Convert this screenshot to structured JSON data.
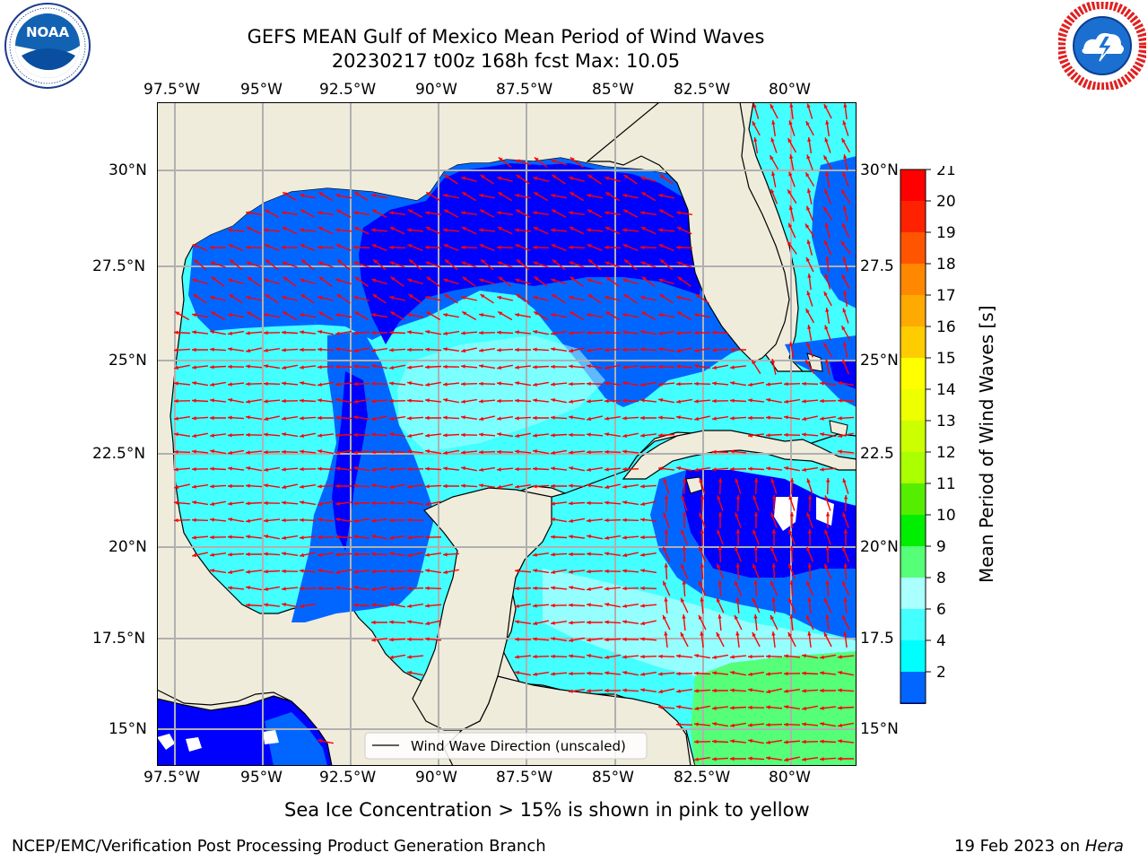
{
  "header": {
    "title_line1": "GEFS MEAN Gulf of Mexico Mean Period of Wind Waves",
    "title_line2": "20230217 t00z 168h fcst   Max: 10.05"
  },
  "logos": {
    "left": {
      "name": "noaa-logo",
      "text": "NOAA",
      "ring_text": "NATIONAL OCEANIC AND ATMOSPHERIC ADMINISTRATION · U.S. DEPARTMENT OF COMMERCE"
    },
    "right": {
      "name": "nws-logo",
      "ring_text": "NATIONAL WEATHER SERVICE"
    }
  },
  "map": {
    "lon_labels": [
      "97.5°W",
      "95°W",
      "92.5°W",
      "90°W",
      "87.5°W",
      "85°W",
      "82.5°W",
      "80°W"
    ],
    "lat_labels_left": [
      "30°N",
      "27.5°N",
      "25°N",
      "22.5°N",
      "20°N",
      "17.5°N",
      "15°N"
    ],
    "lat_labels_right": [
      "30°N",
      "27.5",
      "25°N",
      "22.5",
      "20°N",
      "17.5",
      "15°N"
    ],
    "legend_label": "Wind Wave Direction (unscaled)",
    "colors": {
      "land": "#efecdb",
      "band_2_4": "#0066ff",
      "band_4_6": "#00ffff",
      "band_6_8": "#44ffff",
      "band_8_9": "#aaffff",
      "band_9_10": "#55ff77",
      "below_2": "#0000ff",
      "arrow": "#ff0000",
      "grid": "#b0b0b0"
    }
  },
  "colorbar": {
    "label": "Mean Period of Wind Waves [s]",
    "ticks": [
      "21",
      "20",
      "19",
      "18",
      "17",
      "16",
      "15",
      "14",
      "13",
      "12",
      "11",
      "10",
      "9",
      "8",
      "6",
      "4",
      "2"
    ],
    "colors": [
      "#ff0000",
      "#ff2200",
      "#ff5500",
      "#ff8800",
      "#ffaa00",
      "#ffcc00",
      "#ffff00",
      "#eeff00",
      "#ccff00",
      "#aaff00",
      "#55ee00",
      "#00ee00",
      "#55ff77",
      "#aaffff",
      "#44ffff",
      "#00ffff",
      "#0066ff"
    ],
    "extend_color": "#0000ff"
  },
  "note": "Sea Ice Concentration > 15% is shown in pink to yellow",
  "footer": {
    "left": "NCEP/EMC/Verification Post Processing Product Generation Branch",
    "right_prefix": "19 Feb 2023 on ",
    "right_host": "Hera"
  }
}
